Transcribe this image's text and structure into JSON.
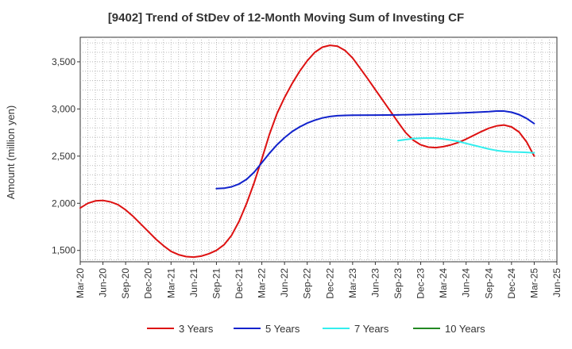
{
  "chart_data": {
    "type": "line",
    "title": "[9402]  Trend of StDev of 12-Month Moving Sum of Investing CF",
    "ylabel": "Amount (million yen)",
    "xlabel": "",
    "ylim": [
      1380,
      3760
    ],
    "y_ticks": [
      1500,
      2000,
      2500,
      3000,
      3500
    ],
    "y_tick_labels": [
      "1,500",
      "2,000",
      "2,500",
      "3,000",
      "3,500"
    ],
    "x_tick_labels": [
      "Mar-20",
      "Jun-20",
      "Sep-20",
      "Dec-20",
      "Mar-21",
      "Jun-21",
      "Sep-21",
      "Dec-21",
      "Mar-22",
      "Jun-22",
      "Sep-22",
      "Dec-22",
      "Mar-23",
      "Jun-23",
      "Sep-23",
      "Dec-23",
      "Mar-24",
      "Jun-24",
      "Sep-24",
      "Dec-24",
      "Mar-25",
      "Jun-25"
    ],
    "grid": true,
    "legend_position": "bottom",
    "series": [
      {
        "name": "3 Years",
        "color": "#dd1111",
        "points": [
          [
            "Mar-20",
            1950
          ],
          [
            "Apr-20",
            2000
          ],
          [
            "May-20",
            2025
          ],
          [
            "Jun-20",
            2030
          ],
          [
            "Jul-20",
            2015
          ],
          [
            "Aug-20",
            1985
          ],
          [
            "Sep-20",
            1930
          ],
          [
            "Oct-20",
            1860
          ],
          [
            "Nov-20",
            1780
          ],
          [
            "Dec-20",
            1700
          ],
          [
            "Jan-21",
            1620
          ],
          [
            "Feb-21",
            1550
          ],
          [
            "Mar-21",
            1490
          ],
          [
            "Apr-21",
            1455
          ],
          [
            "May-21",
            1435
          ],
          [
            "Jun-21",
            1430
          ],
          [
            "Jul-21",
            1440
          ],
          [
            "Aug-21",
            1465
          ],
          [
            "Sep-21",
            1500
          ],
          [
            "Oct-21",
            1560
          ],
          [
            "Nov-21",
            1660
          ],
          [
            "Dec-21",
            1810
          ],
          [
            "Jan-22",
            2000
          ],
          [
            "Feb-22",
            2220
          ],
          [
            "Mar-22",
            2470
          ],
          [
            "Apr-22",
            2730
          ],
          [
            "May-22",
            2950
          ],
          [
            "Jun-22",
            3120
          ],
          [
            "Jul-22",
            3270
          ],
          [
            "Aug-22",
            3400
          ],
          [
            "Sep-22",
            3510
          ],
          [
            "Oct-22",
            3600
          ],
          [
            "Nov-22",
            3655
          ],
          [
            "Dec-22",
            3675
          ],
          [
            "Jan-23",
            3665
          ],
          [
            "Feb-23",
            3620
          ],
          [
            "Mar-23",
            3540
          ],
          [
            "Apr-23",
            3430
          ],
          [
            "May-23",
            3320
          ],
          [
            "Jun-23",
            3205
          ],
          [
            "Jul-23",
            3090
          ],
          [
            "Aug-23",
            2975
          ],
          [
            "Sep-23",
            2860
          ],
          [
            "Oct-23",
            2750
          ],
          [
            "Nov-23",
            2670
          ],
          [
            "Dec-23",
            2620
          ],
          [
            "Jan-24",
            2595
          ],
          [
            "Feb-24",
            2590
          ],
          [
            "Mar-24",
            2600
          ],
          [
            "Apr-24",
            2620
          ],
          [
            "May-24",
            2645
          ],
          [
            "Jun-24",
            2680
          ],
          [
            "Jul-24",
            2720
          ],
          [
            "Aug-24",
            2760
          ],
          [
            "Sep-24",
            2795
          ],
          [
            "Oct-24",
            2820
          ],
          [
            "Nov-24",
            2830
          ],
          [
            "Dec-24",
            2810
          ],
          [
            "Jan-25",
            2755
          ],
          [
            "Feb-25",
            2650
          ],
          [
            "Mar-25",
            2500
          ]
        ]
      },
      {
        "name": "5 Years",
        "color": "#1122cc",
        "points": [
          [
            "Sep-21",
            2155
          ],
          [
            "Oct-21",
            2160
          ],
          [
            "Nov-21",
            2175
          ],
          [
            "Dec-21",
            2205
          ],
          [
            "Jan-22",
            2255
          ],
          [
            "Feb-22",
            2330
          ],
          [
            "Mar-22",
            2430
          ],
          [
            "Apr-22",
            2530
          ],
          [
            "May-22",
            2620
          ],
          [
            "Jun-22",
            2695
          ],
          [
            "Jul-22",
            2760
          ],
          [
            "Aug-22",
            2810
          ],
          [
            "Sep-22",
            2850
          ],
          [
            "Oct-22",
            2880
          ],
          [
            "Nov-22",
            2905
          ],
          [
            "Dec-22",
            2920
          ],
          [
            "Jan-23",
            2928
          ],
          [
            "Feb-23",
            2932
          ],
          [
            "Mar-23",
            2933
          ],
          [
            "Jun-23",
            2935
          ],
          [
            "Sep-23",
            2937
          ],
          [
            "Dec-23",
            2943
          ],
          [
            "Mar-24",
            2950
          ],
          [
            "Jun-24",
            2960
          ],
          [
            "Sep-24",
            2972
          ],
          [
            "Oct-24",
            2978
          ],
          [
            "Nov-24",
            2978
          ],
          [
            "Dec-24",
            2965
          ],
          [
            "Jan-25",
            2940
          ],
          [
            "Feb-25",
            2900
          ],
          [
            "Mar-25",
            2845
          ]
        ]
      },
      {
        "name": "7 Years",
        "color": "#33eeee",
        "points": [
          [
            "Sep-23",
            2665
          ],
          [
            "Oct-23",
            2675
          ],
          [
            "Nov-23",
            2685
          ],
          [
            "Dec-23",
            2690
          ],
          [
            "Jan-24",
            2692
          ],
          [
            "Feb-24",
            2690
          ],
          [
            "Mar-24",
            2682
          ],
          [
            "Apr-24",
            2670
          ],
          [
            "May-24",
            2655
          ],
          [
            "Jun-24",
            2635
          ],
          [
            "Jul-24",
            2615
          ],
          [
            "Aug-24",
            2595
          ],
          [
            "Sep-24",
            2575
          ],
          [
            "Oct-24",
            2560
          ],
          [
            "Nov-24",
            2550
          ],
          [
            "Dec-24",
            2545
          ],
          [
            "Jan-25",
            2542
          ],
          [
            "Feb-25",
            2540
          ],
          [
            "Mar-25",
            2535
          ]
        ]
      },
      {
        "name": "10 Years",
        "color": "#228822",
        "points": []
      }
    ]
  }
}
